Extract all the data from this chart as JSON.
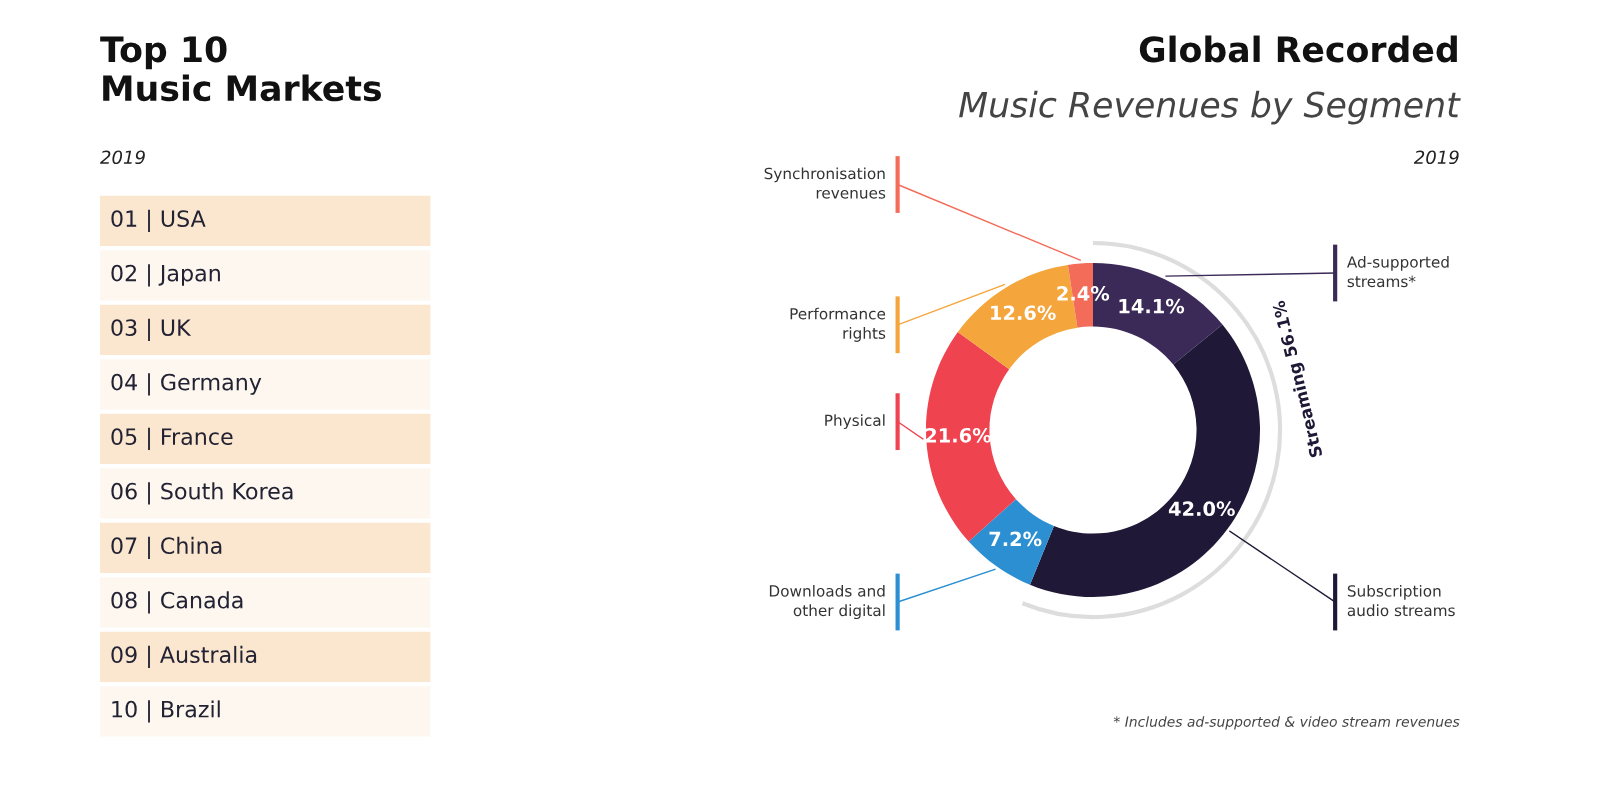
{
  "chart_data": [
    {
      "type": "other",
      "title": "Top 10\nMusic Markets",
      "subtitle": "2019",
      "annotations": [
        "01 | USA",
        "02 | Japan",
        "03 | UK",
        "04 | Germany",
        "05 | France",
        "06 | South Korea",
        "07 | China",
        "08 | Canada",
        "09 | Australia",
        "10 | Brazil"
      ]
    },
    {
      "type": "donut",
      "title": "Global Recorded",
      "subtitle": "Music Revenues by Segment",
      "categories": [
        "Ad-supported\nstreams*",
        "Subscription\naudio streams",
        "Downloads and\nother digital",
        "Physical",
        "Performance\nrights",
        "Synchronisation\nrevenues"
      ],
      "values": [
        14.1,
        42.0,
        7.2,
        21.6,
        12.6,
        2.4
      ],
      "colors": [
        "#3b2a58",
        "#1f1836",
        "#2b8fd2",
        "#ef4350",
        "#f4a53b",
        "#f36c5a"
      ],
      "value_labels": [
        "14.1%",
        "42.0%",
        "7.2%",
        "21.6%",
        "12.6%",
        "2.4%"
      ],
      "annotations": [
        "2019",
        "Streaming 56.1%",
        "* Includes ad-supported & video stream revenues"
      ]
    }
  ]
}
